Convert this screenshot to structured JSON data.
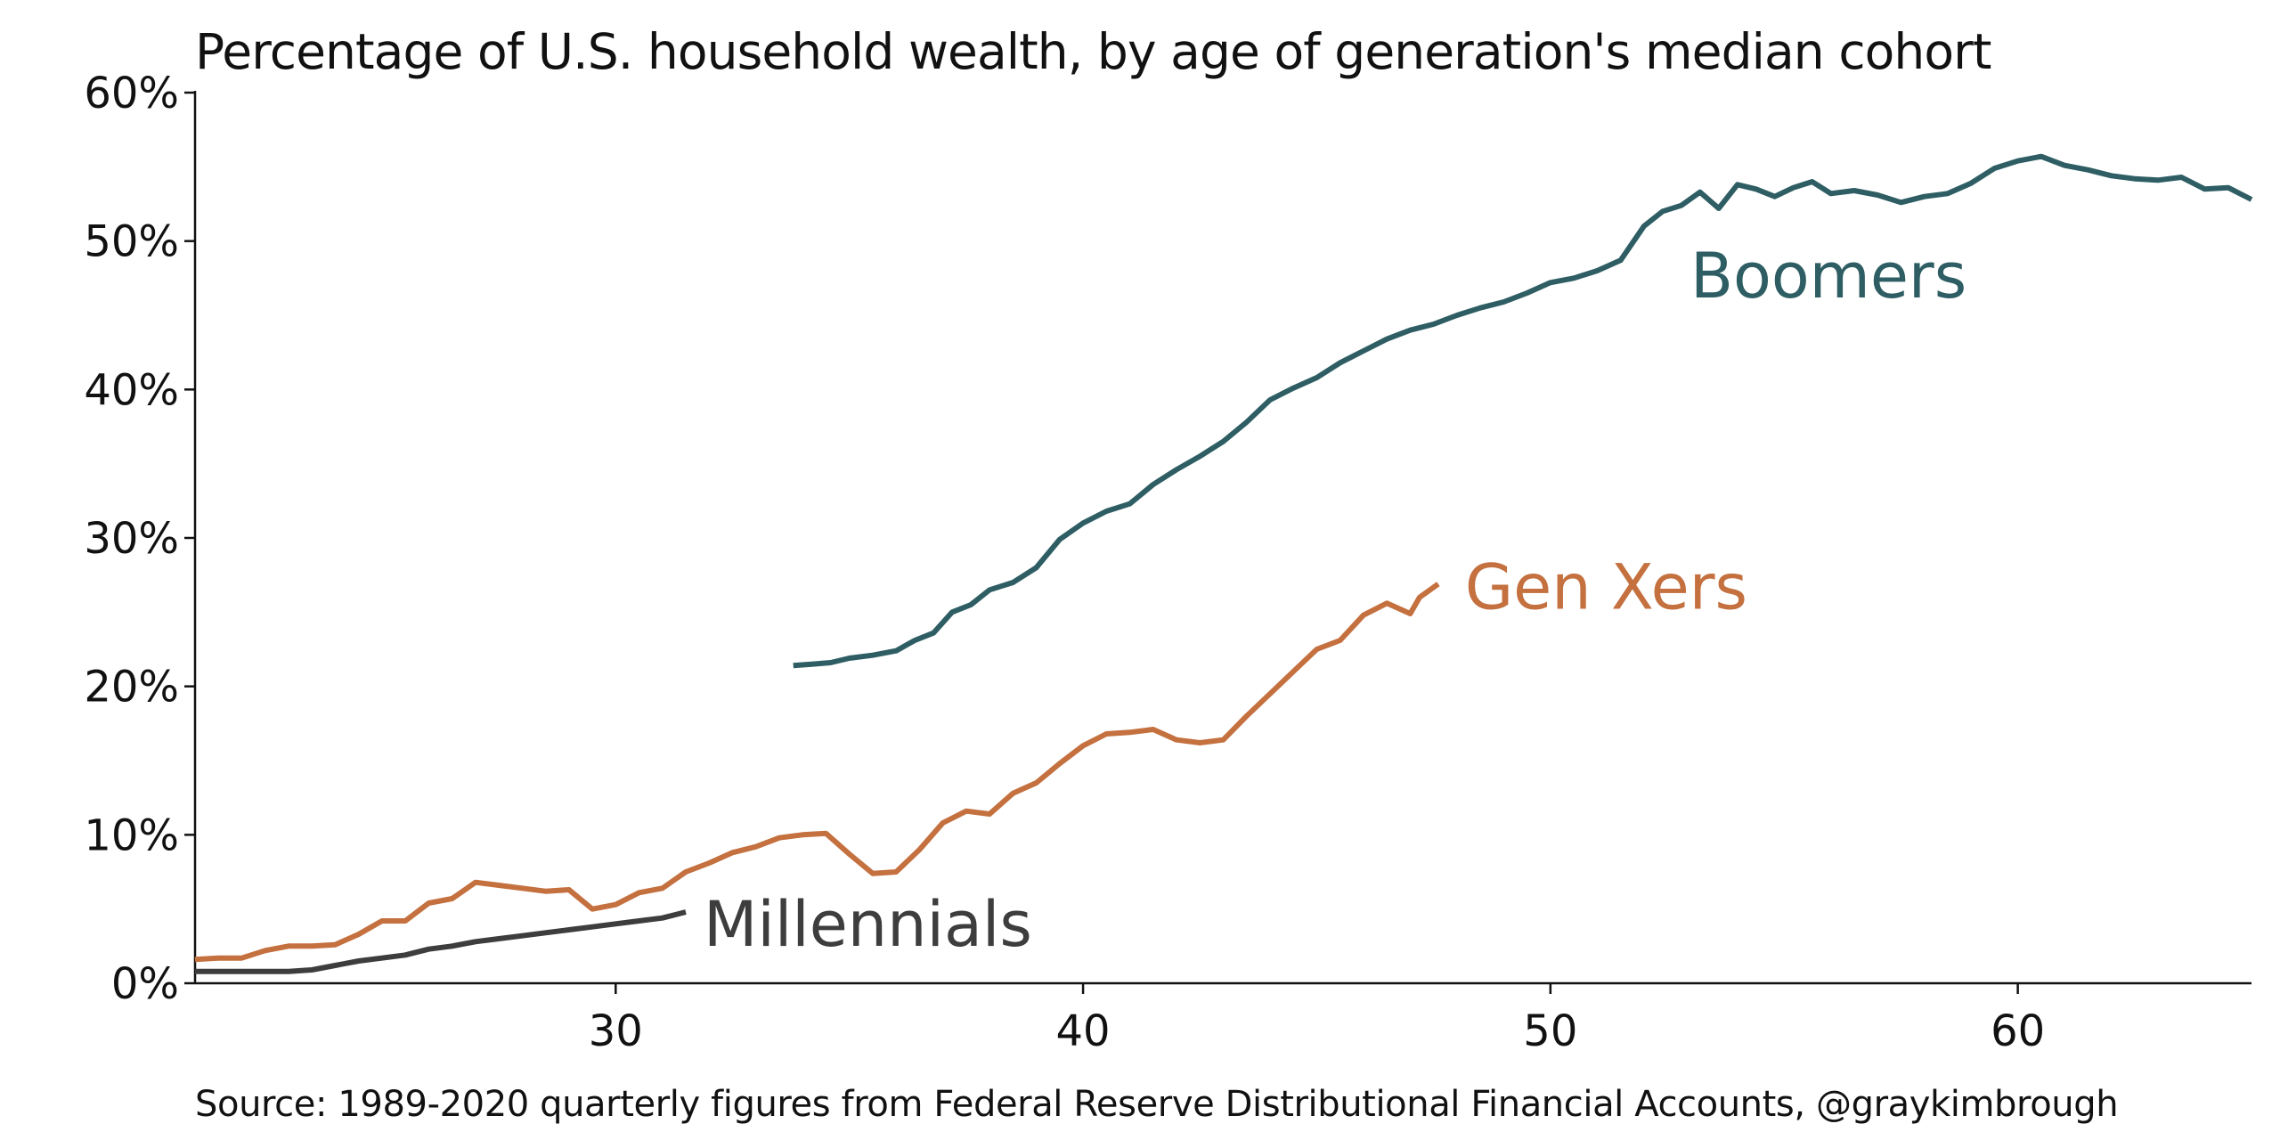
{
  "title": "Percentage of U.S. household wealth, by age of generation's median cohort",
  "source": "Source: 1989-2020 quarterly figures from Federal Reserve Distributional Financial Accounts, @graykimbrough",
  "chart_data": {
    "type": "line",
    "title": "Percentage of U.S. household wealth, by age of generation's median cohort",
    "xlabel": "",
    "ylabel": "",
    "xlim": [
      21,
      65
    ],
    "ylim": [
      0,
      60
    ],
    "x_ticks": [
      30,
      40,
      50,
      60
    ],
    "x_tick_labels": [
      "30",
      "40",
      "50",
      "60"
    ],
    "y_ticks": [
      0,
      10,
      20,
      30,
      40,
      50,
      60
    ],
    "y_tick_labels": [
      "0%",
      "10%",
      "20%",
      "30%",
      "40%",
      "50%",
      "60%"
    ],
    "grid": false,
    "legend": "none (series labeled directly on chart)",
    "series": [
      {
        "name": "Boomers",
        "color": "#2e5e64",
        "points": [
          [
            33.8,
            21.4
          ],
          [
            34.2,
            21.5
          ],
          [
            34.6,
            21.6
          ],
          [
            35.0,
            21.9
          ],
          [
            35.5,
            22.1
          ],
          [
            36.0,
            22.4
          ],
          [
            36.4,
            23.1
          ],
          [
            36.8,
            23.6
          ],
          [
            37.2,
            25.0
          ],
          [
            37.6,
            25.5
          ],
          [
            38.0,
            26.5
          ],
          [
            38.5,
            27.0
          ],
          [
            39.0,
            28.0
          ],
          [
            39.5,
            29.9
          ],
          [
            40.0,
            31.0
          ],
          [
            40.5,
            31.8
          ],
          [
            41.0,
            32.3
          ],
          [
            41.5,
            33.6
          ],
          [
            42.0,
            34.6
          ],
          [
            42.5,
            35.5
          ],
          [
            43.0,
            36.5
          ],
          [
            43.5,
            37.8
          ],
          [
            44.0,
            39.3
          ],
          [
            44.5,
            40.1
          ],
          [
            45.0,
            40.8
          ],
          [
            45.5,
            41.8
          ],
          [
            46.0,
            42.6
          ],
          [
            46.5,
            43.4
          ],
          [
            47.0,
            44.0
          ],
          [
            47.5,
            44.4
          ],
          [
            48.0,
            45.0
          ],
          [
            48.5,
            45.5
          ],
          [
            49.0,
            45.9
          ],
          [
            49.5,
            46.5
          ],
          [
            50.0,
            47.2
          ],
          [
            50.5,
            47.5
          ],
          [
            51.0,
            48.0
          ],
          [
            51.5,
            48.7
          ],
          [
            52.0,
            51.0
          ],
          [
            52.4,
            52.0
          ],
          [
            52.8,
            52.4
          ],
          [
            53.2,
            53.3
          ],
          [
            53.6,
            52.2
          ],
          [
            54.0,
            53.8
          ],
          [
            54.4,
            53.5
          ],
          [
            54.8,
            53.0
          ],
          [
            55.2,
            53.6
          ],
          [
            55.6,
            54.0
          ],
          [
            56.0,
            53.2
          ],
          [
            56.5,
            53.4
          ],
          [
            57.0,
            53.1
          ],
          [
            57.5,
            52.6
          ],
          [
            58.0,
            53.0
          ],
          [
            58.5,
            53.2
          ],
          [
            59.0,
            53.9
          ],
          [
            59.5,
            54.9
          ],
          [
            60.0,
            55.4
          ],
          [
            60.5,
            55.7
          ],
          [
            61.0,
            55.1
          ],
          [
            61.5,
            54.8
          ],
          [
            62.0,
            54.4
          ],
          [
            62.5,
            54.2
          ],
          [
            63.0,
            54.1
          ],
          [
            63.5,
            54.3
          ],
          [
            64.0,
            53.5
          ],
          [
            64.5,
            53.6
          ],
          [
            65.0,
            52.8
          ]
        ]
      },
      {
        "name": "Gen Xers",
        "color": "#c4703f",
        "points": [
          [
            21.0,
            1.6
          ],
          [
            21.5,
            1.7
          ],
          [
            22.0,
            1.7
          ],
          [
            22.5,
            2.2
          ],
          [
            23.0,
            2.5
          ],
          [
            23.5,
            2.5
          ],
          [
            24.0,
            2.6
          ],
          [
            24.5,
            3.3
          ],
          [
            25.0,
            4.2
          ],
          [
            25.5,
            4.2
          ],
          [
            26.0,
            5.4
          ],
          [
            26.5,
            5.7
          ],
          [
            27.0,
            6.8
          ],
          [
            27.5,
            6.6
          ],
          [
            28.0,
            6.4
          ],
          [
            28.5,
            6.2
          ],
          [
            29.0,
            6.3
          ],
          [
            29.5,
            5.0
          ],
          [
            30.0,
            5.3
          ],
          [
            30.5,
            6.1
          ],
          [
            31.0,
            6.4
          ],
          [
            31.5,
            7.5
          ],
          [
            32.0,
            8.1
          ],
          [
            32.5,
            8.8
          ],
          [
            33.0,
            9.2
          ],
          [
            33.5,
            9.8
          ],
          [
            34.0,
            10.0
          ],
          [
            34.5,
            10.1
          ],
          [
            35.0,
            8.7
          ],
          [
            35.5,
            7.4
          ],
          [
            36.0,
            7.5
          ],
          [
            36.5,
            9.0
          ],
          [
            37.0,
            10.8
          ],
          [
            37.5,
            11.6
          ],
          [
            38.0,
            11.4
          ],
          [
            38.5,
            12.8
          ],
          [
            39.0,
            13.5
          ],
          [
            39.5,
            14.8
          ],
          [
            40.0,
            16.0
          ],
          [
            40.5,
            16.8
          ],
          [
            41.0,
            16.9
          ],
          [
            41.5,
            17.1
          ],
          [
            42.0,
            16.4
          ],
          [
            42.5,
            16.2
          ],
          [
            43.0,
            16.4
          ],
          [
            43.5,
            18.0
          ],
          [
            44.0,
            19.5
          ],
          [
            44.5,
            21.0
          ],
          [
            45.0,
            22.5
          ],
          [
            45.5,
            23.1
          ],
          [
            46.0,
            24.8
          ],
          [
            46.5,
            25.6
          ],
          [
            47.0,
            24.9
          ],
          [
            47.2,
            26.0
          ],
          [
            47.6,
            26.9
          ]
        ]
      },
      {
        "name": "Millennials",
        "color": "#3d3d3d",
        "points": [
          [
            21.0,
            0.8
          ],
          [
            21.5,
            0.8
          ],
          [
            22.0,
            0.8
          ],
          [
            22.5,
            0.8
          ],
          [
            23.0,
            0.8
          ],
          [
            23.5,
            0.9
          ],
          [
            24.0,
            1.2
          ],
          [
            24.5,
            1.5
          ],
          [
            25.0,
            1.7
          ],
          [
            25.5,
            1.9
          ],
          [
            26.0,
            2.3
          ],
          [
            26.5,
            2.5
          ],
          [
            27.0,
            2.8
          ],
          [
            27.5,
            3.0
          ],
          [
            28.0,
            3.2
          ],
          [
            28.5,
            3.4
          ],
          [
            29.0,
            3.6
          ],
          [
            29.5,
            3.8
          ],
          [
            30.0,
            4.0
          ],
          [
            30.5,
            4.2
          ],
          [
            31.0,
            4.4
          ],
          [
            31.5,
            4.8
          ]
        ]
      }
    ],
    "annotations": [
      {
        "text": "Boomers",
        "series": "Boomers"
      },
      {
        "text": "Gen Xers",
        "series": "Gen Xers"
      },
      {
        "text": "Millennials",
        "series": "Millennials"
      }
    ]
  }
}
